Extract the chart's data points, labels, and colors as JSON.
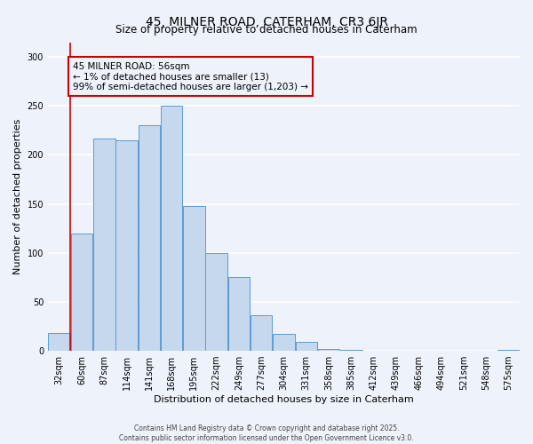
{
  "title": "45, MILNER ROAD, CATERHAM, CR3 6JR",
  "subtitle": "Size of property relative to detached houses in Caterham",
  "xlabel": "Distribution of detached houses by size in Caterham",
  "ylabel": "Number of detached properties",
  "bar_labels": [
    "32sqm",
    "60sqm",
    "87sqm",
    "114sqm",
    "141sqm",
    "168sqm",
    "195sqm",
    "222sqm",
    "249sqm",
    "277sqm",
    "304sqm",
    "331sqm",
    "358sqm",
    "385sqm",
    "412sqm",
    "439sqm",
    "466sqm",
    "494sqm",
    "521sqm",
    "548sqm",
    "575sqm"
  ],
  "bar_values": [
    18,
    120,
    217,
    215,
    230,
    250,
    148,
    100,
    75,
    36,
    17,
    9,
    2,
    1,
    0,
    0,
    0,
    0,
    0,
    0,
    1
  ],
  "bar_color": "#c5d8ee",
  "bar_edge_color": "#5b9bd5",
  "ylim": [
    0,
    315
  ],
  "yticks": [
    0,
    50,
    100,
    150,
    200,
    250,
    300
  ],
  "vline_x": 0.5,
  "annotation_title": "45 MILNER ROAD: 56sqm",
  "annotation_line1": "← 1% of detached houses are smaller (13)",
  "annotation_line2": "99% of semi-detached houses are larger (1,203) →",
  "annotation_box_color": "#cc0000",
  "vline_color": "#cc0000",
  "footer1": "Contains HM Land Registry data © Crown copyright and database right 2025.",
  "footer2": "Contains public sector information licensed under the Open Government Licence v3.0.",
  "background_color": "#eef2fb",
  "grid_color": "#ffffff",
  "title_fontsize": 10,
  "subtitle_fontsize": 8.5,
  "xlabel_fontsize": 8,
  "ylabel_fontsize": 8,
  "tick_fontsize": 7,
  "annot_fontsize": 7.5,
  "footer_fontsize": 5.5
}
